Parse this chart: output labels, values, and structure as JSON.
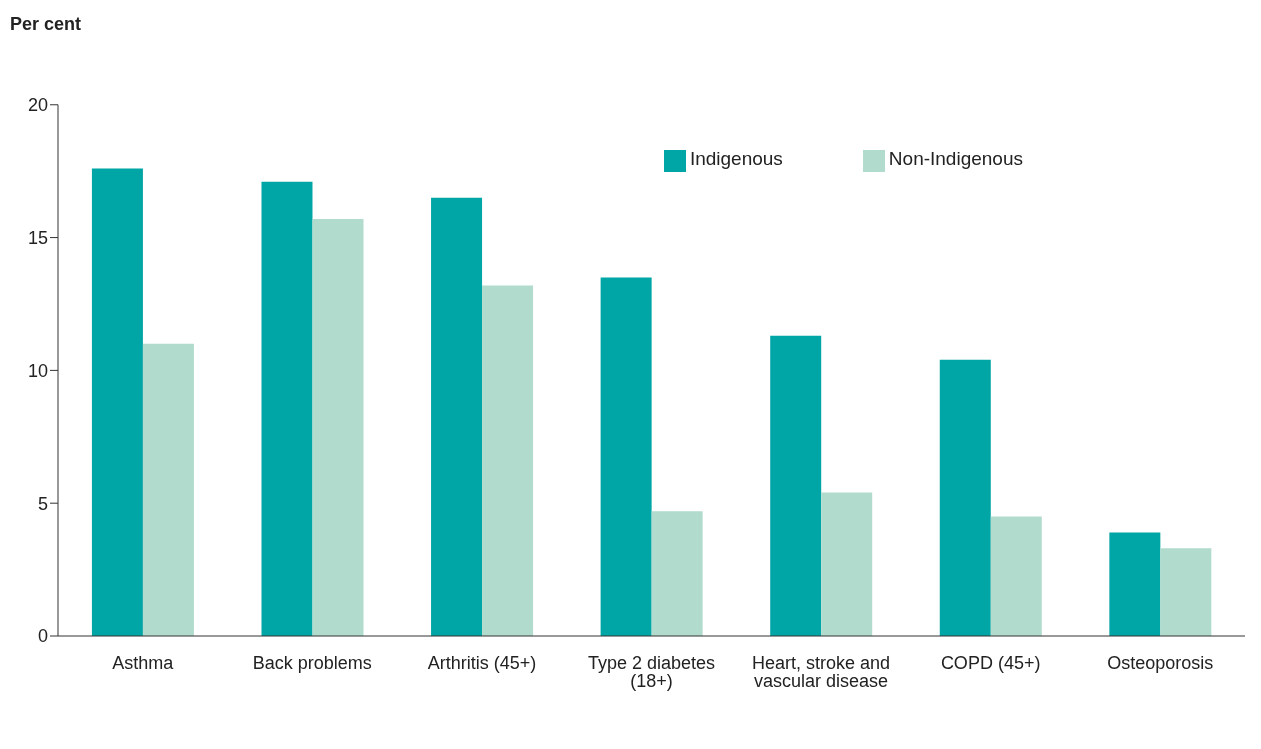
{
  "chart_data": {
    "type": "bar",
    "ylabel": "Per cent",
    "categories": [
      "Asthma",
      "Back problems",
      "Arthritis (45+)",
      "Type 2 diabetes (18+)",
      "Heart, stroke and vascular disease",
      "COPD (45+)",
      "Osteoporosis"
    ],
    "series": [
      {
        "name": "Indigenous",
        "color": "#00a5a5",
        "values": [
          17.6,
          17.1,
          16.5,
          13.5,
          11.3,
          10.4,
          3.9
        ]
      },
      {
        "name": "Non-Indigenous",
        "color": "#b0dbcd",
        "values": [
          11.0,
          15.7,
          13.2,
          4.7,
          5.4,
          4.5,
          3.3
        ]
      }
    ],
    "ylim": [
      0,
      20
    ],
    "yticks": [
      0,
      5,
      10,
      15,
      20
    ],
    "grid": false,
    "legend": "top right"
  }
}
